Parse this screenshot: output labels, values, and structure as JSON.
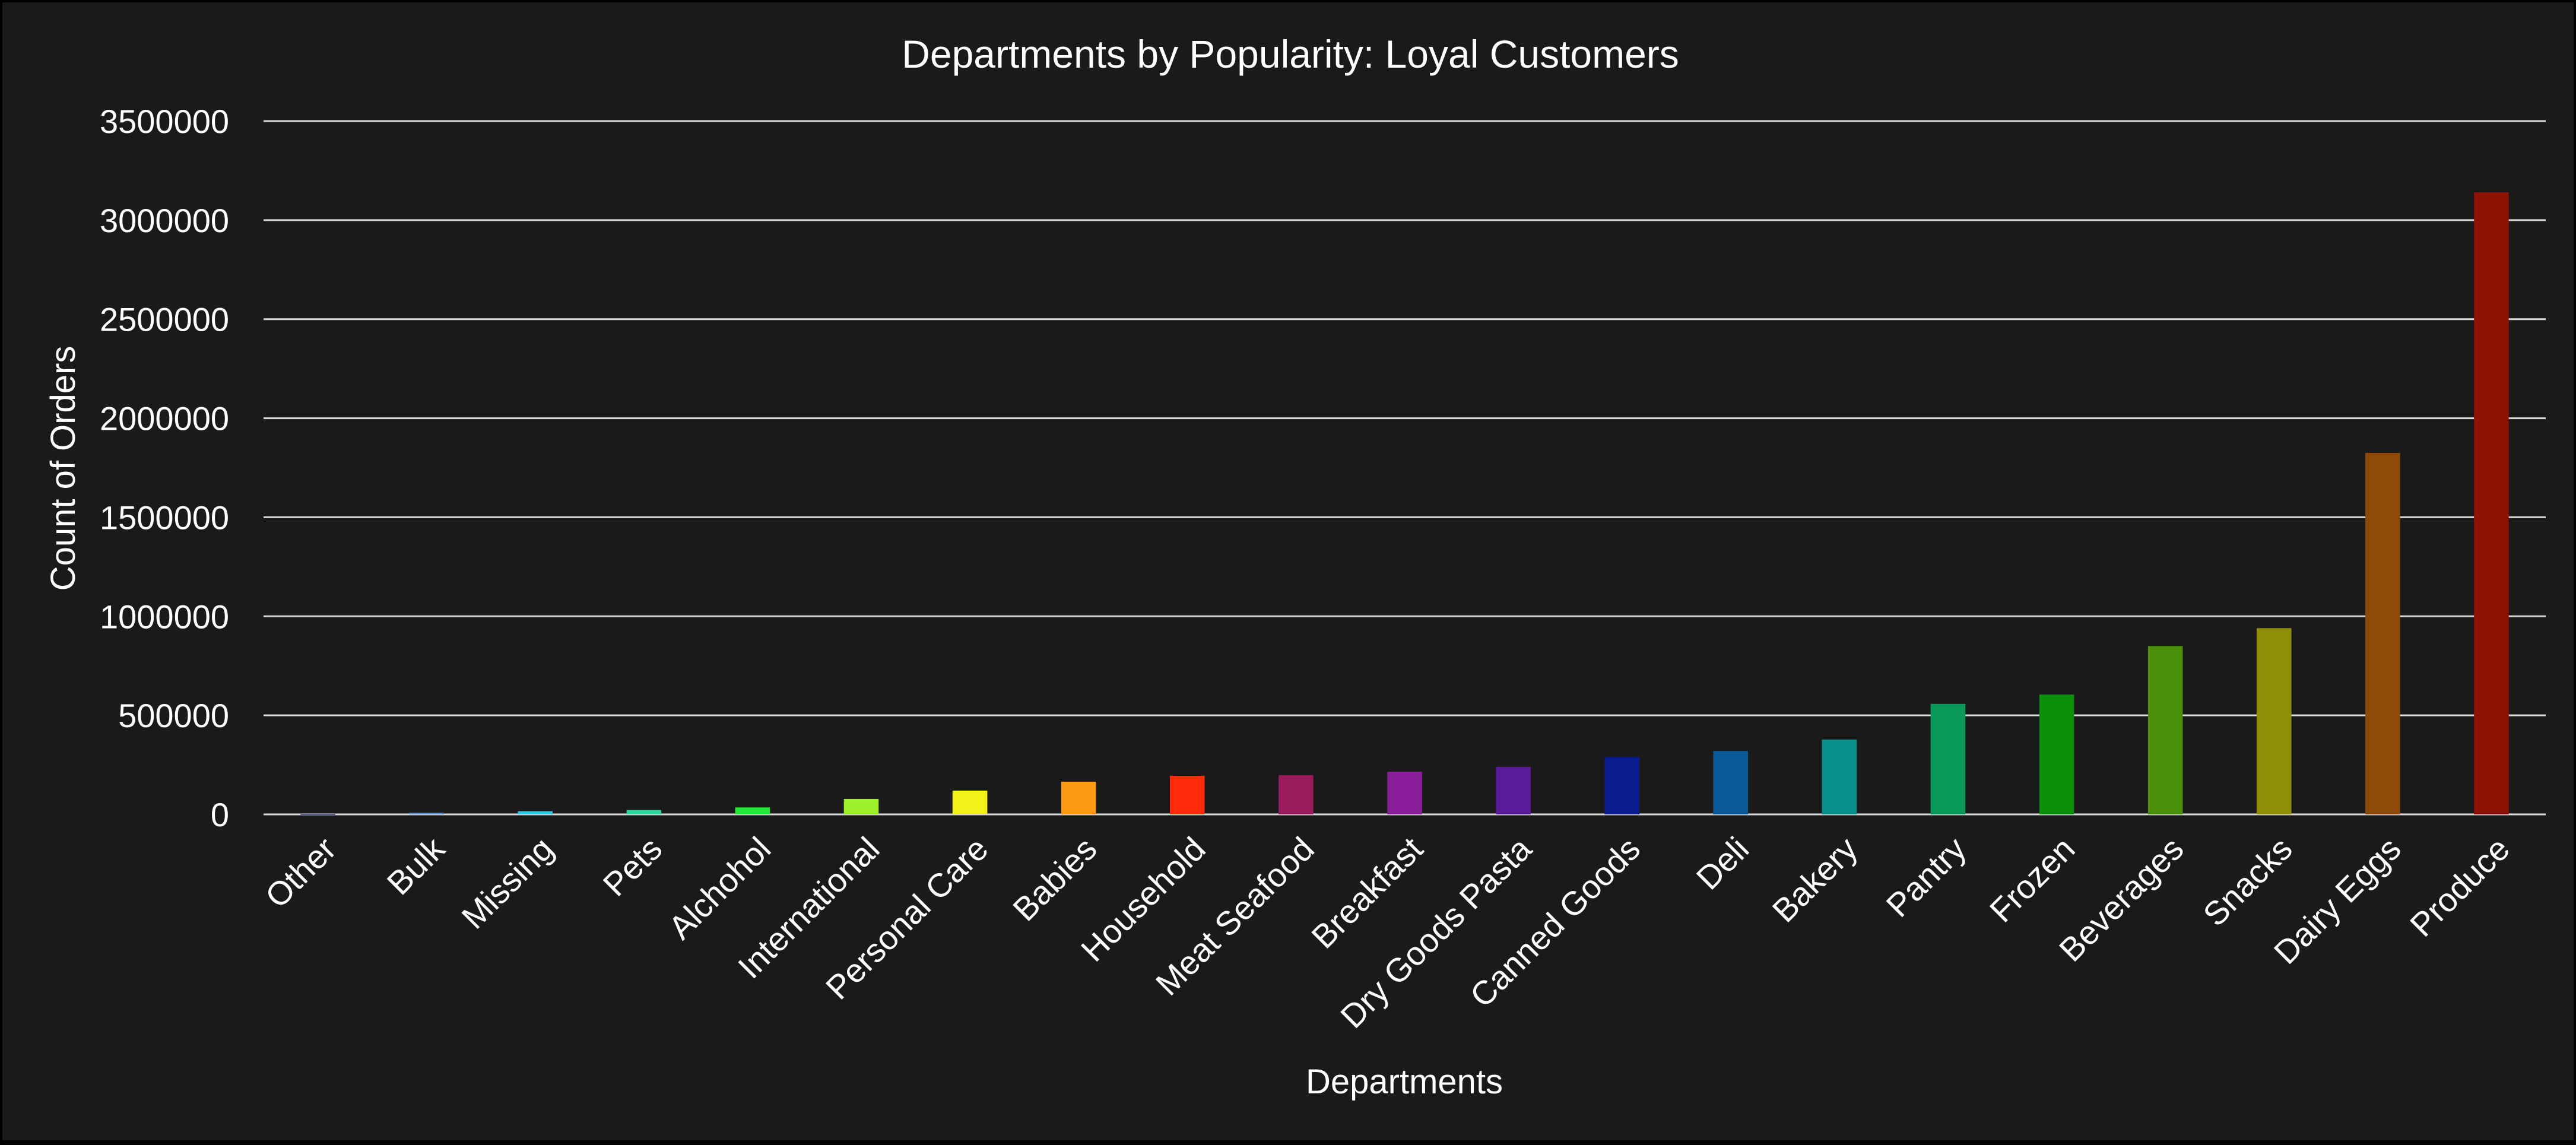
{
  "chart_data": {
    "type": "bar",
    "title": "Departments by Popularity: Loyal Customers",
    "xlabel": "Departments",
    "ylabel": "Count of Orders",
    "ylim": [
      0,
      3500000
    ],
    "yticks": [
      "0",
      "500000",
      "1000000",
      "1500000",
      "2000000",
      "2500000",
      "3000000",
      "3500000"
    ],
    "grid": true,
    "legend": "none",
    "categories": [
      "Other",
      "Bulk",
      "Missing",
      "Pets",
      "Alchohol",
      "International",
      "Personal Care",
      "Babies",
      "Household",
      "Meat Seafood",
      "Breakfast",
      "Dry Goods Pasta",
      "Canned Goods",
      "Deli",
      "Bakery",
      "Pantry",
      "Frozen",
      "Beverages",
      "Snacks",
      "Dairy Eggs",
      "Produce"
    ],
    "values": [
      3000,
      8000,
      16000,
      22000,
      35000,
      78000,
      120000,
      165000,
      195000,
      198000,
      215000,
      240000,
      290000,
      320000,
      378000,
      558000,
      605000,
      850000,
      940000,
      1825000,
      3140000
    ],
    "colors": [
      "#4a5f8f",
      "#5b8fd0",
      "#2ec9e6",
      "#2ed69a",
      "#22e83a",
      "#9ef02a",
      "#f2f21a",
      "#ff9a14",
      "#ff2a0a",
      "#9a1a5c",
      "#8a1e9a",
      "#5a1a9a",
      "#0a1a8f",
      "#0a5a9a",
      "#0a8f8f",
      "#0a9a5a",
      "#0a8f0a",
      "#4a8f0a",
      "#8f8f0a",
      "#8f4a0a",
      "#8f1205"
    ]
  }
}
